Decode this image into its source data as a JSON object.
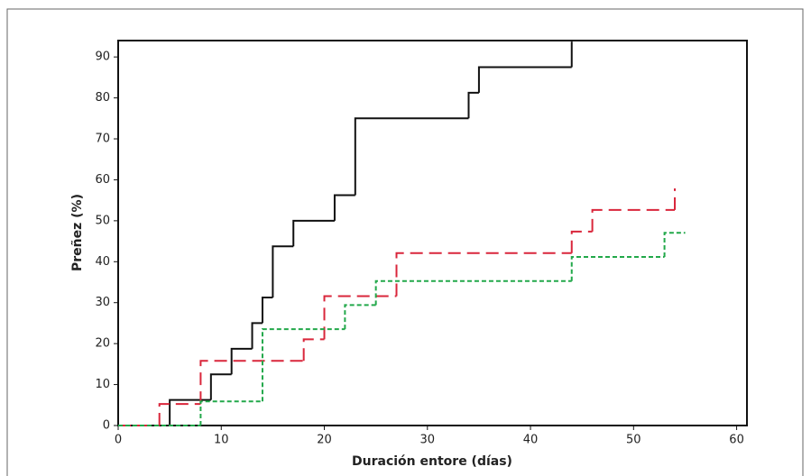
{
  "chart_data": {
    "type": "step",
    "x_label": "Duración entore (días)",
    "y_label": "Preñez (%)",
    "xlim": [
      0,
      61
    ],
    "ylim": [
      0,
      94
    ],
    "xticks": [
      0,
      10,
      20,
      30,
      40,
      50,
      60
    ],
    "yticks": [
      0,
      10,
      20,
      30,
      40,
      50,
      60,
      70,
      80,
      90
    ],
    "series": [
      {
        "color": "#111111",
        "dash": "none",
        "x": [
          0,
          5,
          9,
          11,
          13,
          14,
          15,
          17,
          21,
          23,
          34,
          35,
          44
        ],
        "values": [
          0,
          6.25,
          12.5,
          18.75,
          25,
          31.25,
          43.75,
          50,
          56.25,
          75,
          81.25,
          87.5,
          93.75
        ]
      },
      {
        "color": "#d9263b",
        "dash": "14 7",
        "x": [
          0,
          4,
          8,
          18,
          20,
          27,
          44,
          46,
          54
        ],
        "values": [
          0,
          5.26,
          15.79,
          21.05,
          31.58,
          42.11,
          47.37,
          52.63,
          57.89
        ]
      },
      {
        "color": "#22a84a",
        "dash": "5 3",
        "x": [
          0,
          8,
          14,
          22,
          25,
          44,
          53,
          55
        ],
        "values": [
          0,
          5.88,
          23.53,
          29.41,
          35.29,
          41.18,
          47.06,
          47.06
        ]
      }
    ]
  }
}
